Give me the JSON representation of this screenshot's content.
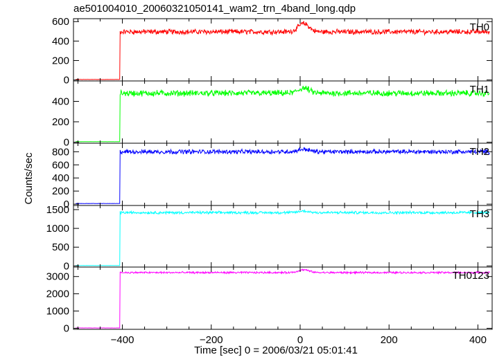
{
  "chart_data": {
    "type": "line",
    "title": "ae501004010_20060321050141_wam2_trn_4band_long.qdp",
    "xlabel": "Time [sec] 0 = 2006/03/21 05:01:41",
    "ylabel": "Counts/sec",
    "xlim": [
      -510,
      432
    ],
    "x_ticks": [
      -400,
      -200,
      0,
      200,
      400
    ],
    "x_tick_labels": [
      "−400",
      "−200",
      "0",
      "200",
      "400"
    ],
    "trigger_time": -405,
    "grid": false,
    "panels": [
      {
        "name": "TH0",
        "color": "#ff0000",
        "ylim": [
          -10,
          630
        ],
        "y_ticks": [
          0,
          200,
          400,
          600
        ],
        "y_tick_labels": [
          "0",
          "200",
          "400",
          "600"
        ],
        "pre_level": 5,
        "post_level": 495,
        "noise": 22,
        "bump_peak": 85
      },
      {
        "name": "TH1",
        "color": "#00ff00",
        "ylim": [
          -10,
          600
        ],
        "y_ticks": [
          0,
          200,
          400
        ],
        "y_tick_labels": [
          "0",
          "200",
          "400"
        ],
        "pre_level": 5,
        "post_level": 480,
        "noise": 25,
        "bump_peak": 50
      },
      {
        "name": "TH2",
        "color": "#0000ff",
        "ylim": [
          -20,
          930
        ],
        "y_ticks": [
          0,
          200,
          400,
          600,
          800
        ],
        "y_tick_labels": [
          "0",
          "200",
          "400",
          "600",
          "800"
        ],
        "pre_level": 10,
        "post_level": 800,
        "noise": 28,
        "bump_peak": 40
      },
      {
        "name": "TH3",
        "color": "#00ffff",
        "ylim": [
          -30,
          1610
        ],
        "y_ticks": [
          0,
          500,
          1000,
          1500
        ],
        "y_tick_labels": [
          "0",
          "500",
          "1000",
          "1500"
        ],
        "pre_level": 10,
        "post_level": 1420,
        "noise": 30,
        "bump_peak": 40
      },
      {
        "name": "TH0123",
        "color": "#ff00ff",
        "ylim": [
          -60,
          3550
        ],
        "y_ticks": [
          0,
          1000,
          2000,
          3000
        ],
        "y_tick_labels": [
          "0",
          "1000",
          "2000",
          "3000"
        ],
        "pre_level": 20,
        "post_level": 3230,
        "noise": 45,
        "bump_peak": 160
      }
    ]
  }
}
